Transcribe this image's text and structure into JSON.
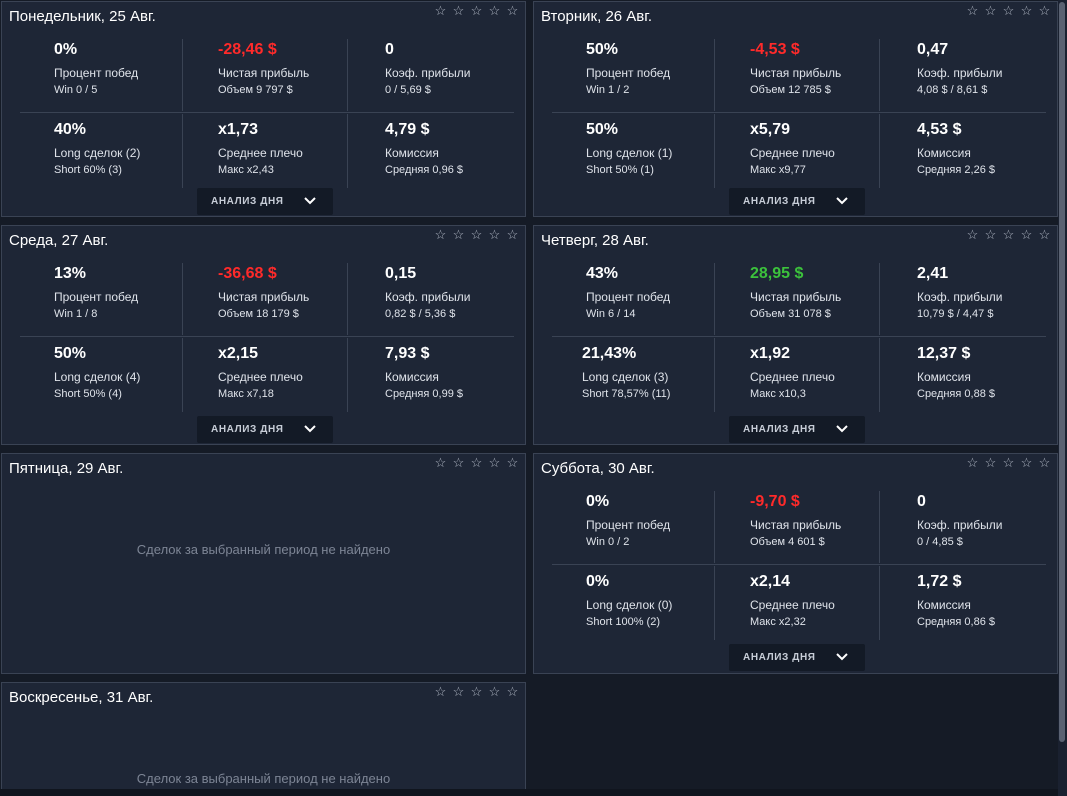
{
  "stars": [
    "☆",
    "☆",
    "☆",
    "☆",
    "☆"
  ],
  "analyze_label": "АНАЛИЗ ДНЯ",
  "days": [
    {
      "title": "Понедельник, 25 Авг.",
      "win_pct": "0%",
      "win_label": "Процент побед",
      "win_sub": "Win 0 / 5",
      "profit": "-28,46 $",
      "profit_label": "Чистая прибыль",
      "profit_sub": "Объем 9 797 $",
      "pf": "0",
      "pf_label": "Коэф. прибыли",
      "pf_sub": "0 / 5,69 $",
      "long_pct": "40%",
      "long_label": "Long сделок (2)",
      "long_sub": "Short 60% (3)",
      "lev": "x1,73",
      "lev_label": "Среднее плечо",
      "lev_sub": "Макс x2,43",
      "fee": "4,79 $",
      "fee_label": "Комиссия",
      "fee_sub": "Средняя 0,96 $"
    },
    {
      "title": "Вторник, 26 Авг.",
      "win_pct": "50%",
      "win_label": "Процент побед",
      "win_sub": "Win 1 / 2",
      "profit": "-4,53 $",
      "profit_label": "Чистая прибыль",
      "profit_sub": "Объем 12 785 $",
      "pf": "0,47",
      "pf_label": "Коэф. прибыли",
      "pf_sub": "4,08 $ / 8,61 $",
      "long_pct": "50%",
      "long_label": "Long сделок (1)",
      "long_sub": "Short 50% (1)",
      "lev": "x5,79",
      "lev_label": "Среднее плечо",
      "lev_sub": "Макс x9,77",
      "fee": "4,53 $",
      "fee_label": "Комиссия",
      "fee_sub": "Средняя 2,26 $"
    },
    {
      "title": "Среда, 27 Авг.",
      "win_pct": "13%",
      "win_label": "Процент побед",
      "win_sub": "Win 1 / 8",
      "profit": "-36,68 $",
      "profit_label": "Чистая прибыль",
      "profit_sub": "Объем 18 179 $",
      "pf": "0,15",
      "pf_label": "Коэф. прибыли",
      "pf_sub": "0,82 $ / 5,36 $",
      "long_pct": "50%",
      "long_label": "Long сделок (4)",
      "long_sub": "Short 50% (4)",
      "lev": "x2,15",
      "lev_label": "Среднее плечо",
      "lev_sub": "Макс x7,18",
      "fee": "7,93 $",
      "fee_label": "Комиссия",
      "fee_sub": "Средняя 0,99 $"
    },
    {
      "title": "Четверг, 28 Авг.",
      "win_pct": "43%",
      "win_label": "Процент побед",
      "win_sub": "Win 6 / 14",
      "profit": "28,95 $",
      "profit_label": "Чистая прибыль",
      "profit_sub": "Объем 31 078 $",
      "pf": "2,41",
      "pf_label": "Коэф. прибыли",
      "pf_sub": "10,79 $ / 4,47 $",
      "long_pct": "21,43%",
      "long_label": "Long сделок (3)",
      "long_sub": "Short 78,57% (11)",
      "lev": "x1,92",
      "lev_label": "Среднее плечо",
      "lev_sub": "Макс x10,3",
      "fee": "12,37 $",
      "fee_label": "Комиссия",
      "fee_sub": "Средняя 0,88 $"
    },
    {
      "title": "Пятница, 29 Авг.",
      "empty_text": "Сделок за выбранный период не найдено"
    },
    {
      "title": "Суббота, 30 Авг.",
      "win_pct": "0%",
      "win_label": "Процент побед",
      "win_sub": "Win 0 / 2",
      "profit": "-9,70 $",
      "profit_label": "Чистая прибыль",
      "profit_sub": "Объем 4 601 $",
      "pf": "0",
      "pf_label": "Коэф. прибыли",
      "pf_sub": "0 / 4,85 $",
      "long_pct": "0%",
      "long_label": "Long сделок (0)",
      "long_sub": "Short 100% (2)",
      "lev": "x2,14",
      "lev_label": "Среднее плечо",
      "lev_sub": "Макс x2,32",
      "fee": "1,72 $",
      "fee_label": "Комиссия",
      "fee_sub": "Средняя 0,86 $"
    },
    {
      "title": "Воскресенье, 31 Авг.",
      "empty_text": "Сделок за выбранный период не найдено"
    }
  ]
}
